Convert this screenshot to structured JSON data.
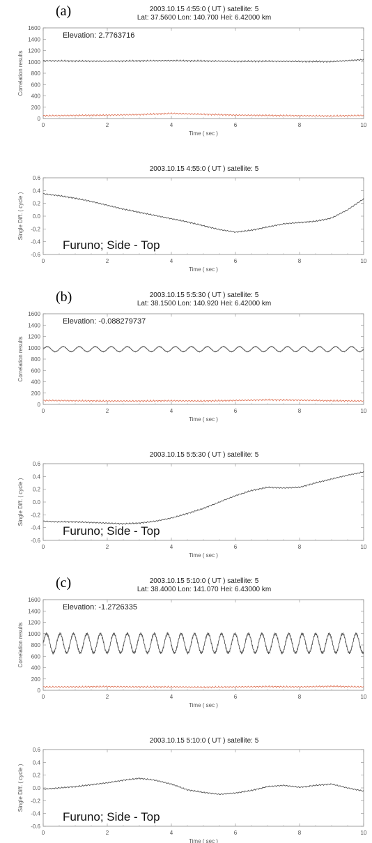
{
  "chart_data": [
    {
      "type": "line",
      "panel_label": "(a)",
      "title_line1": "2003.10.15 4:55:0 ( UT )  satellite: 5",
      "title_line2": "Lat: 37.5600 Lon: 140.700 Hei: 6.42000 km",
      "annotation": "Elevation: 2.7763716",
      "xlabel": "Time ( sec )",
      "ylabel": "Correlation results",
      "xlim": [
        0,
        10
      ],
      "ylim": [
        0,
        1600
      ],
      "xticks": [
        "0",
        "2",
        "4",
        "6",
        "8",
        "10"
      ],
      "yticks": [
        "0",
        "200",
        "400",
        "600",
        "800",
        "1000",
        "1200",
        "1400",
        "1600"
      ],
      "series": [
        {
          "color": "#555555",
          "x": [
            0,
            1,
            2,
            3,
            4,
            5,
            6,
            7,
            8,
            9,
            10
          ],
          "values": [
            1020,
            1015,
            1012,
            1018,
            1022,
            1016,
            1010,
            1012,
            1008,
            1005,
            1040
          ]
        },
        {
          "color": "#e07a5f",
          "x": [
            0,
            1,
            2,
            3,
            4,
            5,
            6,
            7,
            8,
            9,
            10
          ],
          "values": [
            50,
            55,
            60,
            70,
            90,
            75,
            60,
            55,
            50,
            45,
            55
          ]
        }
      ]
    },
    {
      "type": "line",
      "title_line1": "2003.10.15 4:55:0 ( UT )  satellite: 5",
      "annotation": "Furuno; Side - Top",
      "xlabel": "Time ( sec )",
      "ylabel": "Single Diff. ( cycle )",
      "xlim": [
        0,
        10
      ],
      "ylim": [
        -0.6,
        0.6
      ],
      "xticks": [
        "0",
        "2",
        "4",
        "6",
        "8",
        "10"
      ],
      "yticks": [
        "-0.6",
        "-0.4",
        "-0.2",
        "0.0",
        "0.2",
        "0.4",
        "0.6"
      ],
      "series": [
        {
          "color": "#555555",
          "x": [
            0,
            0.5,
            1,
            1.5,
            2,
            2.5,
            3,
            3.5,
            4,
            4.5,
            5,
            5.5,
            6,
            6.5,
            7,
            7.5,
            8,
            8.5,
            9,
            9.5,
            10
          ],
          "values": [
            0.35,
            0.32,
            0.28,
            0.23,
            0.17,
            0.11,
            0.06,
            0.01,
            -0.04,
            -0.09,
            -0.15,
            -0.21,
            -0.25,
            -0.22,
            -0.17,
            -0.12,
            -0.1,
            -0.08,
            -0.03,
            0.1,
            0.27
          ]
        }
      ]
    },
    {
      "type": "line",
      "panel_label": "(b)",
      "title_line1": "2003.10.15 5:5:30 ( UT )  satellite: 5",
      "title_line2": "Lat: 38.1500 Lon: 140.920 Hei: 6.42000 km",
      "annotation": "Elevation: -0.088279737",
      "xlabel": "Time ( sec )",
      "ylabel": "Correlation results",
      "xlim": [
        0,
        10
      ],
      "ylim": [
        0,
        1600
      ],
      "xticks": [
        "0",
        "2",
        "4",
        "6",
        "8",
        "10"
      ],
      "yticks": [
        "0",
        "200",
        "400",
        "600",
        "800",
        "1000",
        "1200",
        "1400",
        "1600"
      ],
      "series": [
        {
          "color": "#555555",
          "base": 975,
          "amp": 45,
          "period": 0.5,
          "x": [
            0,
            10
          ]
        },
        {
          "color": "#e07a5f",
          "x": [
            0,
            1,
            2,
            3,
            4,
            5,
            6,
            7,
            8,
            9,
            10
          ],
          "values": [
            70,
            65,
            60,
            60,
            65,
            60,
            70,
            80,
            75,
            65,
            60
          ]
        }
      ]
    },
    {
      "type": "line",
      "title_line1": "2003.10.15 5:5:30 ( UT )  satellite: 5",
      "annotation": "Furuno; Side - Top",
      "xlabel": "Time ( sec )",
      "ylabel": "Single Diff. ( cycle )",
      "xlim": [
        0,
        10
      ],
      "ylim": [
        -0.6,
        0.6
      ],
      "xticks": [
        "0",
        "2",
        "4",
        "6",
        "8",
        "10"
      ],
      "yticks": [
        "-0.6",
        "-0.4",
        "-0.2",
        "0.0",
        "0.2",
        "0.4",
        "0.6"
      ],
      "series": [
        {
          "color": "#555555",
          "x": [
            0,
            0.5,
            1,
            1.5,
            2,
            2.5,
            3,
            3.5,
            4,
            4.5,
            5,
            5.5,
            6,
            6.5,
            7,
            7.5,
            8,
            8.5,
            9,
            9.5,
            10
          ],
          "values": [
            -0.3,
            -0.31,
            -0.31,
            -0.32,
            -0.33,
            -0.34,
            -0.33,
            -0.3,
            -0.25,
            -0.18,
            -0.1,
            0.0,
            0.1,
            0.18,
            0.23,
            0.22,
            0.23,
            0.3,
            0.36,
            0.42,
            0.47
          ]
        }
      ]
    },
    {
      "type": "line",
      "panel_label": "(c)",
      "title_line1": "2003.10.15 5:10:0 ( UT )  satellite: 5",
      "title_line2": "Lat: 38.4000 Lon: 141.070 Hei: 6.43000 km",
      "annotation": "Elevation: -1.2726335",
      "xlabel": "Time ( sec )",
      "ylabel": "Correlation results",
      "xlim": [
        0,
        10
      ],
      "ylim": [
        0,
        1600
      ],
      "xticks": [
        "0",
        "2",
        "4",
        "6",
        "8",
        "10"
      ],
      "yticks": [
        "0",
        "200",
        "400",
        "600",
        "800",
        "1000",
        "1200",
        "1400",
        "1600"
      ],
      "series": [
        {
          "color": "#555555",
          "base": 830,
          "amp": 170,
          "period": 0.42,
          "x": [
            0,
            10
          ]
        },
        {
          "color": "#e07a5f",
          "x": [
            0,
            1,
            2,
            3,
            4,
            5,
            6,
            7,
            8,
            9,
            10
          ],
          "values": [
            60,
            60,
            65,
            60,
            60,
            55,
            60,
            65,
            60,
            70,
            60
          ]
        }
      ]
    },
    {
      "type": "line",
      "title_line1": "2003.10.15 5:10:0 ( UT )  satellite: 5",
      "annotation": "Furuno; Side - Top",
      "xlabel": "Time ( sec )",
      "ylabel": "Single Diff. ( cycle )",
      "xlim": [
        0,
        10
      ],
      "ylim": [
        -0.6,
        0.6
      ],
      "xticks": [
        "0",
        "2",
        "4",
        "6",
        "8",
        "10"
      ],
      "yticks": [
        "-0.6",
        "-0.4",
        "-0.2",
        "0.0",
        "0.2",
        "0.4",
        "0.6"
      ],
      "series": [
        {
          "color": "#555555",
          "x": [
            0,
            0.5,
            1,
            1.5,
            2,
            2.5,
            3,
            3.5,
            4,
            4.5,
            5,
            5.5,
            6,
            6.5,
            7,
            7.5,
            8,
            8.5,
            9,
            9.5,
            10
          ],
          "values": [
            -0.02,
            0.0,
            0.02,
            0.05,
            0.08,
            0.12,
            0.15,
            0.12,
            0.06,
            -0.03,
            -0.07,
            -0.1,
            -0.08,
            -0.04,
            0.02,
            0.04,
            0.01,
            0.04,
            0.06,
            0.0,
            -0.05
          ]
        }
      ]
    }
  ]
}
